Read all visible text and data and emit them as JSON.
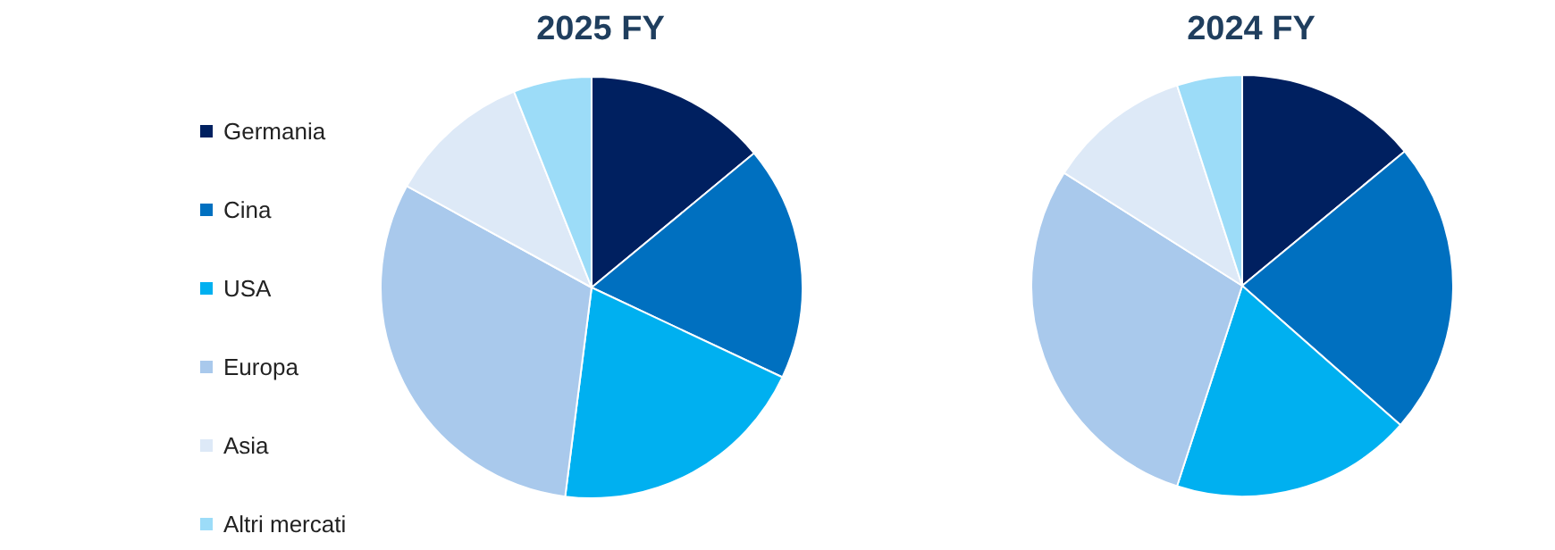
{
  "chart_data": [
    {
      "type": "pie",
      "title": "2025 FY",
      "categories": [
        "Germania",
        "Cina",
        "USA",
        "Europa",
        "Asia",
        "Altri mercati"
      ],
      "values": [
        14,
        18,
        20,
        31,
        11,
        6
      ],
      "colors": [
        "#002060",
        "#0070c0",
        "#00b0f0",
        "#a9c9ec",
        "#dde9f7",
        "#9cdcf8"
      ],
      "legend": "left"
    },
    {
      "type": "pie",
      "title": "2024 FY",
      "categories": [
        null,
        null,
        null,
        null,
        null,
        null
      ],
      "values": [
        14,
        22.5,
        18.5,
        29,
        11,
        5
      ],
      "colors": [
        "#002060",
        "#0070c0",
        "#00b0f0",
        "#a9c9ec",
        "#dde9f7",
        "#9cdcf8"
      ],
      "legend": false
    }
  ]
}
